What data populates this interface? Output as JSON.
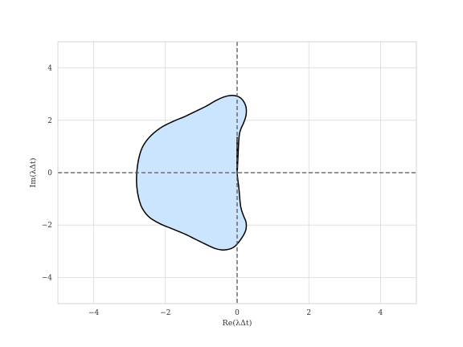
{
  "chart_data": {
    "type": "area",
    "title": "",
    "xlabel": "Re(λΔt)",
    "ylabel": "Im(λΔt)",
    "xlim": [
      -5,
      5
    ],
    "ylim": [
      -5,
      5
    ],
    "xticks": [
      -4,
      -2,
      0,
      2,
      4
    ],
    "yticks": [
      -4,
      -2,
      0,
      2,
      4
    ],
    "xtick_labels": [
      "−4",
      "−2",
      "0",
      "2",
      "4"
    ],
    "ytick_labels": [
      "−4",
      "−2",
      "0",
      "2",
      "4"
    ],
    "grid": true,
    "reference_lines": [
      {
        "orientation": "horizontal",
        "value": 0,
        "style": "dashed"
      },
      {
        "orientation": "vertical",
        "value": 0,
        "style": "dashed"
      }
    ],
    "series": [
      {
        "fill_color": "#cce5ff",
        "line_color": "#000000",
        "x": [
          0.0,
          0.05,
          0.1,
          0.18,
          0.25,
          0.24,
          0.1,
          -0.1,
          -0.35,
          -0.6,
          -0.85,
          -1.15,
          -1.45,
          -1.8,
          -2.15,
          -2.45,
          -2.65,
          -2.75,
          -2.8,
          -2.8,
          -2.75,
          -2.65,
          -2.45,
          -2.15,
          -1.8,
          -1.45,
          -1.15,
          -0.85,
          -0.6,
          -0.35,
          -0.1,
          0.1,
          0.24,
          0.25,
          0.18,
          0.1,
          0.05,
          0.0,
          0.0,
          0.0,
          0.0
        ],
        "y": [
          0.0,
          1.3,
          1.65,
          1.9,
          2.2,
          2.55,
          2.85,
          2.95,
          2.9,
          2.75,
          2.55,
          2.35,
          2.15,
          1.95,
          1.7,
          1.35,
          0.95,
          0.5,
          0.0,
          -0.5,
          -0.95,
          -1.35,
          -1.7,
          -1.95,
          -2.15,
          -2.35,
          -2.55,
          -2.75,
          -2.9,
          -2.95,
          -2.85,
          -2.55,
          -2.2,
          -1.9,
          -1.65,
          -1.3,
          -0.6,
          0.0,
          0.6,
          1.0,
          1.3
        ]
      }
    ],
    "colors": {
      "fill": "#cce5ff",
      "outline": "#000000",
      "grid": "#d9d9d9",
      "reference_line": "#555555",
      "frame": "#cccccc"
    }
  }
}
